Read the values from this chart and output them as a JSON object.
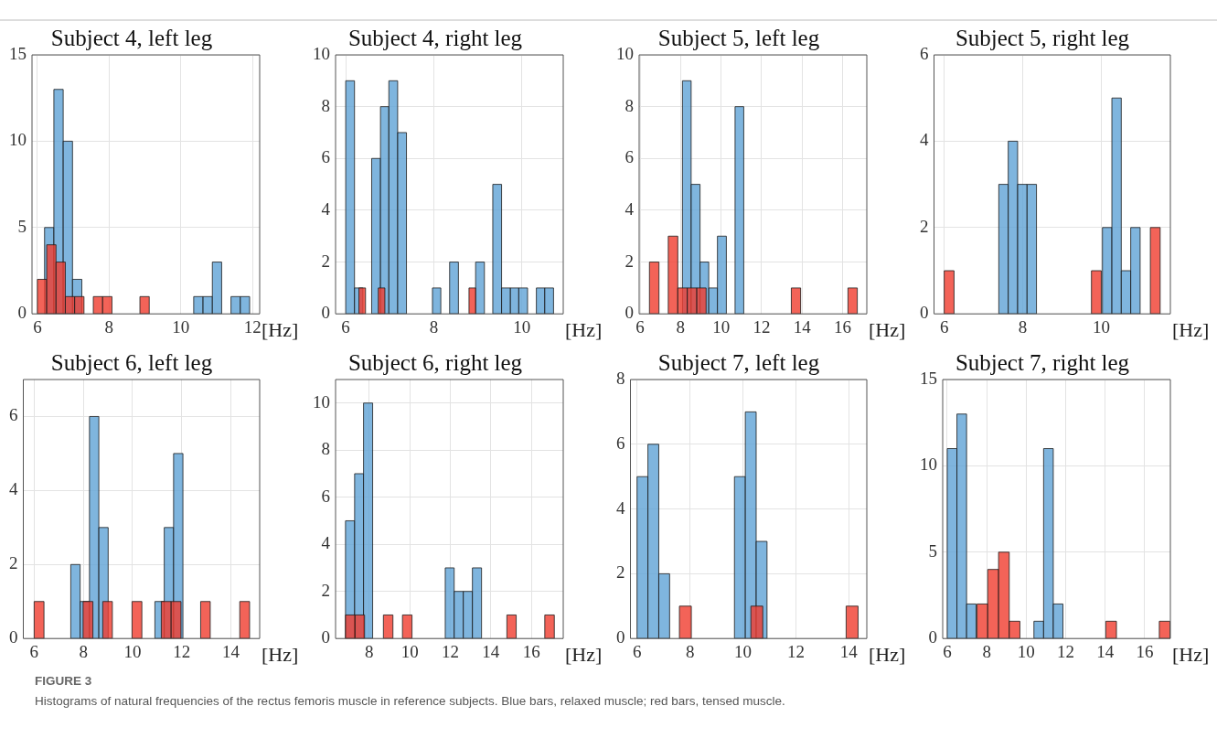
{
  "chart_data": [
    {
      "type": "histogram",
      "title": "Subject 4, left leg",
      "xlabel": "[Hz]",
      "xlim": [
        5.85,
        12.2
      ],
      "xticks": [
        6,
        8,
        10,
        12
      ],
      "ylim": [
        0,
        15
      ],
      "yticks": [
        0,
        5,
        10,
        15
      ],
      "grid": true,
      "annotations": [
        "FIGURE 3",
        "Histograms of natural frequencies of the rectus femoris muscle in reference subjects. Blue bars, relaxed muscle; red bars, tensed muscle."
      ],
      "bins": [
        6.2,
        6.46,
        6.72,
        6.98,
        7.24,
        7.5,
        7.76,
        8.02,
        8.28,
        8.54,
        8.8,
        9.06,
        9.32,
        9.58,
        9.84,
        10.1,
        10.36,
        10.62,
        10.88,
        11.14,
        11.4,
        11.66,
        11.92
      ],
      "series": [
        {
          "color": "#5fa3d6",
          "values": [
            5,
            13,
            10,
            2,
            0,
            0,
            0,
            0,
            0,
            0,
            0,
            0,
            0,
            0,
            0,
            0,
            1,
            1,
            3,
            0,
            1,
            1
          ]
        },
        {
          "color": "#f03c2e",
          "bins": [
            6.0,
            6.26,
            6.52,
            6.78,
            7.04,
            7.3,
            7.56,
            7.82,
            8.08,
            8.34,
            8.6,
            8.86,
            9.12
          ],
          "values": [
            2,
            4,
            3,
            1,
            1,
            0,
            1,
            1,
            0,
            0,
            0,
            1
          ]
        }
      ]
    },
    {
      "type": "histogram",
      "title": "Subject 4, right leg",
      "xlabel": "[Hz]",
      "xlim": [
        5.77,
        10.94
      ],
      "xticks": [
        6,
        8,
        10
      ],
      "ylim": [
        0,
        10
      ],
      "yticks": [
        0,
        2,
        4,
        6,
        8,
        10
      ],
      "grid": true,
      "bins": [
        6.0,
        6.2,
        6.39,
        6.59,
        6.79,
        6.98,
        7.18,
        7.38,
        7.57,
        7.77,
        7.97,
        8.16,
        8.36,
        8.56,
        8.75,
        8.95,
        9.15,
        9.34,
        9.54,
        9.74,
        9.93,
        10.13,
        10.33,
        10.52,
        10.72
      ],
      "series": [
        {
          "color": "#5fa3d6",
          "values": [
            9,
            1,
            0,
            6,
            8,
            9,
            7,
            0,
            0,
            0,
            1,
            0,
            2,
            0,
            0,
            2,
            0,
            5,
            1,
            1,
            1,
            0,
            1,
            1
          ]
        },
        {
          "color": "#f03c2e",
          "bins": [
            6.3,
            6.45,
            6.59,
            6.74,
            6.89,
            7.04,
            7.18,
            7.33,
            7.48,
            7.62,
            7.77,
            7.92,
            8.06,
            8.21,
            8.36,
            8.51,
            8.65,
            8.8,
            8.95
          ],
          "values": [
            1,
            0,
            0,
            1,
            0,
            0,
            0,
            0,
            0,
            0,
            0,
            0,
            0,
            0,
            0,
            0,
            0,
            1
          ]
        }
      ]
    },
    {
      "type": "histogram",
      "title": "Subject 5, left leg",
      "xlabel": "[Hz]",
      "xlim": [
        5.95,
        17.2
      ],
      "xticks": [
        6,
        8,
        10,
        12,
        14,
        16
      ],
      "ylim": [
        0,
        10
      ],
      "yticks": [
        0,
        2,
        4,
        6,
        8,
        10
      ],
      "grid": true,
      "bins": [
        8.09,
        8.52,
        8.96,
        9.39,
        9.82,
        10.26,
        10.69,
        11.12
      ],
      "series": [
        {
          "color": "#5fa3d6",
          "values": [
            9,
            5,
            2,
            1,
            3,
            0,
            8
          ]
        },
        {
          "color": "#f03c2e",
          "bins": [
            6.46,
            6.93,
            7.39,
            7.86,
            8.33,
            8.8,
            9.26,
            9.73,
            10.2,
            10.66,
            11.13,
            11.6,
            12.06,
            12.53,
            13.0,
            13.47,
            13.93,
            14.4,
            14.87,
            15.33,
            15.8,
            16.27,
            16.73
          ],
          "values": [
            2,
            0,
            3,
            1,
            1,
            1,
            0,
            0,
            0,
            0,
            0,
            0,
            0,
            0,
            0,
            1,
            0,
            0,
            0,
            0,
            0,
            1
          ]
        }
      ]
    },
    {
      "type": "histogram",
      "title": "Subject 5, right leg",
      "xlabel": "[Hz]",
      "xlim": [
        5.74,
        11.76
      ],
      "xticks": [
        6,
        8,
        10
      ],
      "ylim": [
        0,
        6
      ],
      "yticks": [
        0,
        2,
        4,
        6
      ],
      "grid": true,
      "bins": [
        7.39,
        7.63,
        7.87,
        8.11,
        8.35,
        8.59,
        8.83,
        9.07,
        9.31,
        9.55,
        9.79,
        10.03,
        10.27,
        10.51,
        10.75,
        10.99
      ],
      "series": [
        {
          "color": "#5fa3d6",
          "values": [
            3,
            4,
            3,
            3,
            0,
            0,
            0,
            0,
            0,
            0,
            0,
            2,
            5,
            1,
            2
          ]
        },
        {
          "color": "#f03c2e",
          "bins": [
            6.0,
            6.25,
            6.5,
            6.75,
            7.0,
            7.25,
            7.5,
            7.75,
            8.0,
            8.25,
            8.5,
            8.75,
            9.0,
            9.25,
            9.5,
            9.75,
            10.0,
            10.25,
            10.5,
            10.75,
            11.0,
            11.25,
            11.5
          ],
          "values": [
            1,
            0,
            0,
            0,
            0,
            0,
            0,
            0,
            0,
            0,
            0,
            0,
            0,
            0,
            0,
            1,
            0,
            0,
            0,
            0,
            0,
            2
          ]
        }
      ]
    },
    {
      "type": "histogram",
      "title": "Subject 6, left leg",
      "xlabel": "[Hz]",
      "xlim": [
        5.56,
        15.17
      ],
      "xticks": [
        6,
        8,
        10,
        12,
        14
      ],
      "ylim": [
        0,
        7
      ],
      "yticks": [
        0,
        2,
        4,
        6
      ],
      "grid": true,
      "bins": [
        7.49,
        7.87,
        8.25,
        8.63,
        9.01,
        9.39,
        9.77,
        10.15,
        10.53,
        10.91,
        11.29,
        11.67,
        12.05
      ],
      "series": [
        {
          "color": "#5fa3d6",
          "values": [
            2,
            1,
            6,
            3,
            0,
            0,
            0,
            0,
            0,
            1,
            3,
            5
          ]
        },
        {
          "color": "#f03c2e",
          "bins": [
            6.0,
            6.4,
            6.8,
            7.19,
            7.59,
            7.99,
            8.39,
            8.79,
            9.18,
            9.58,
            9.98,
            10.38,
            10.78,
            11.17,
            11.57,
            11.97,
            12.37,
            12.77,
            13.16,
            13.56,
            13.96,
            14.36,
            14.76
          ],
          "values": [
            1,
            0,
            0,
            0,
            0,
            1,
            0,
            1,
            0,
            0,
            1,
            0,
            0,
            1,
            1,
            0,
            0,
            1,
            0,
            0,
            0,
            1
          ]
        }
      ]
    },
    {
      "type": "histogram",
      "title": "Subject 6, right leg",
      "xlabel": "[Hz]",
      "xlim": [
        6.34,
        17.57
      ],
      "xticks": [
        8,
        10,
        12,
        14,
        16
      ],
      "ylim": [
        0,
        11
      ],
      "yticks": [
        0,
        2,
        4,
        6,
        8,
        10
      ],
      "grid": true,
      "bins": [
        6.83,
        7.28,
        7.72,
        8.17,
        8.62,
        9.07,
        9.51,
        9.96,
        10.41,
        10.85,
        11.3,
        11.75,
        12.19,
        12.64,
        13.09,
        13.54
      ],
      "series": [
        {
          "color": "#5fa3d6",
          "values": [
            5,
            7,
            10,
            0,
            0,
            0,
            0,
            0,
            0,
            0,
            0,
            3,
            2,
            2,
            3
          ]
        },
        {
          "color": "#f03c2e",
          "bins": [
            6.83,
            7.3,
            7.77,
            8.23,
            8.7,
            9.17,
            9.64,
            10.11,
            10.57,
            11.04,
            11.51,
            11.98,
            12.45,
            12.91,
            13.38,
            13.85,
            14.32,
            14.79,
            15.25,
            15.72,
            16.19,
            16.66,
            17.13
          ],
          "values": [
            1,
            1,
            0,
            0,
            1,
            0,
            1,
            0,
            0,
            0,
            0,
            0,
            0,
            0,
            0,
            0,
            0,
            1,
            0,
            0,
            0,
            1
          ]
        }
      ]
    },
    {
      "type": "histogram",
      "title": "Subject 7, left leg",
      "xlabel": "[Hz]",
      "xlim": [
        5.75,
        14.68
      ],
      "xticks": [
        6,
        8,
        10,
        12,
        14
      ],
      "ylim": [
        0,
        8
      ],
      "yticks": [
        0,
        2,
        4,
        6,
        8
      ],
      "grid": true,
      "bins": [
        6.0,
        6.41,
        6.82,
        7.23,
        7.64,
        8.05,
        8.45,
        8.86,
        9.27,
        9.68,
        10.09,
        10.5,
        10.91
      ],
      "series": [
        {
          "color": "#5fa3d6",
          "values": [
            5,
            6,
            2,
            0,
            0,
            0,
            0,
            0,
            0,
            5,
            7,
            3
          ]
        },
        {
          "color": "#f03c2e",
          "bins": [
            7.6,
            8.05,
            8.5,
            8.95,
            9.4,
            9.85,
            10.3,
            10.75,
            11.2,
            11.65,
            12.1,
            12.55,
            13.0,
            13.45,
            13.9,
            14.35
          ],
          "values": [
            1,
            0,
            0,
            0,
            0,
            0,
            1,
            0,
            0,
            0,
            0,
            0,
            0,
            0,
            1
          ]
        }
      ]
    },
    {
      "type": "histogram",
      "title": "Subject 7, right leg",
      "xlabel": "[Hz]",
      "xlim": [
        5.77,
        17.3
      ],
      "xticks": [
        6,
        8,
        10,
        12,
        14,
        16
      ],
      "ylim": [
        0,
        15
      ],
      "yticks": [
        0,
        5,
        10,
        15
      ],
      "grid": true,
      "bins": [
        6.0,
        6.49,
        6.98,
        7.46,
        7.95,
        8.44,
        8.93,
        9.42,
        9.9,
        10.39,
        10.88,
        11.37,
        11.86
      ],
      "series": [
        {
          "color": "#5fa3d6",
          "values": [
            11,
            13,
            2,
            0,
            0,
            0,
            0,
            0,
            0,
            1,
            11,
            2
          ]
        },
        {
          "color": "#f03c2e",
          "bins": [
            7.51,
            8.05,
            8.6,
            9.14,
            9.68,
            10.23,
            10.77,
            11.31,
            11.85,
            12.4,
            12.94,
            13.48,
            14.03,
            14.57,
            15.11,
            15.66,
            16.2,
            16.74,
            17.28
          ],
          "values": [
            2,
            4,
            5,
            1,
            0,
            0,
            0,
            0,
            0,
            0,
            0,
            0,
            1,
            0,
            0,
            0,
            0,
            1
          ]
        }
      ]
    }
  ]
}
